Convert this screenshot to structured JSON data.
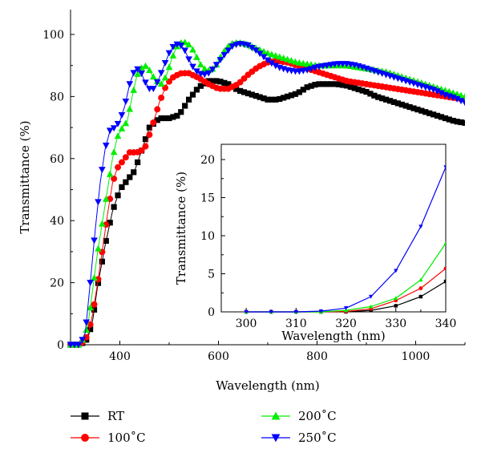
{
  "colors": {
    "RT": "#000000",
    "100C": "#ff0000",
    "200C": "#00ee00",
    "250C": "#0000ff"
  },
  "chart_data": [
    {
      "type": "line",
      "xlabel": "Wavelength (nm)",
      "ylabel": "Transmittance (%)",
      "xlim": [
        300,
        1100
      ],
      "ylim": [
        0,
        108
      ],
      "xticks": [
        400,
        600,
        800,
        1000
      ],
      "yticks": [
        0,
        20,
        40,
        60,
        80,
        100
      ],
      "grid": false,
      "legend_placement": "bottom",
      "series": [
        {
          "name": "RT",
          "color": "#000000",
          "marker": "square",
          "x": [
            300,
            320,
            335,
            345,
            355,
            370,
            385,
            400,
            415,
            430,
            445,
            460,
            480,
            500,
            520,
            540,
            560,
            580,
            600,
            620,
            640,
            660,
            680,
            700,
            720,
            740,
            760,
            780,
            800,
            820,
            840,
            860,
            880,
            900,
            920,
            940,
            960,
            980,
            1000,
            1020,
            1040,
            1060,
            1080,
            1100
          ],
          "y": [
            0,
            0,
            2,
            8,
            19,
            32,
            43,
            50,
            53,
            56,
            63,
            70,
            73,
            73,
            74,
            79,
            83,
            85,
            85,
            84,
            82,
            81,
            80,
            79,
            79,
            80,
            81,
            83,
            84,
            84,
            84,
            83.5,
            82.5,
            81.5,
            80,
            79,
            78,
            77,
            76,
            75,
            74,
            73,
            72,
            71.5
          ]
        },
        {
          "name": "100˚C",
          "color": "#ff0000",
          "marker": "circle",
          "x": [
            300,
            320,
            335,
            345,
            355,
            365,
            375,
            385,
            395,
            405,
            420,
            435,
            450,
            465,
            480,
            495,
            510,
            525,
            540,
            560,
            580,
            600,
            620,
            640,
            660,
            680,
            700,
            720,
            740,
            760,
            780,
            800,
            820,
            840,
            860,
            880,
            900,
            920,
            940,
            960,
            980,
            1000,
            1020,
            1040,
            1060,
            1080,
            1100
          ],
          "y": [
            0,
            0,
            3,
            10,
            20,
            31,
            42,
            52,
            57,
            59,
            62,
            62,
            63,
            70,
            78,
            84,
            86.5,
            87.5,
            87.5,
            86,
            84,
            82.5,
            82.5,
            84,
            87,
            89.5,
            91,
            91.5,
            91,
            90,
            89,
            88,
            87,
            86,
            85,
            84.5,
            84,
            83.5,
            83,
            82.5,
            82,
            81.5,
            81,
            80.5,
            80,
            79.5,
            79
          ]
        },
        {
          "name": "200˚C",
          "color": "#00ee00",
          "marker": "triangle-up",
          "x": [
            300,
            320,
            335,
            345,
            355,
            365,
            375,
            385,
            395,
            405,
            415,
            425,
            435,
            445,
            455,
            465,
            475,
            485,
            495,
            505,
            515,
            525,
            535,
            545,
            555,
            565,
            575,
            585,
            595,
            605,
            615,
            625,
            640,
            655,
            670,
            685,
            700,
            720,
            740,
            760,
            780,
            800,
            820,
            840,
            860,
            880,
            900,
            920,
            940,
            960,
            980,
            1000,
            1020,
            1040,
            1060,
            1080,
            1100
          ],
          "y": [
            0,
            0,
            6,
            18,
            30,
            40,
            50,
            60,
            67,
            70,
            72,
            80,
            87,
            89.5,
            90,
            87,
            85,
            84,
            87,
            92,
            96,
            97.5,
            97.5,
            96,
            93,
            90,
            88.5,
            88.5,
            90,
            93,
            95.5,
            97,
            97.5,
            97,
            96,
            95,
            94,
            93,
            92,
            91,
            90.5,
            90,
            90,
            90,
            90,
            89.5,
            89,
            88.5,
            88,
            87,
            86,
            85,
            84,
            83,
            82,
            81,
            80
          ]
        },
        {
          "name": "250˚C",
          "color": "#0000ff",
          "marker": "triangle-down",
          "x": [
            300,
            320,
            330,
            340,
            350,
            360,
            370,
            380,
            390,
            400,
            410,
            420,
            430,
            440,
            450,
            460,
            470,
            480,
            490,
            500,
            510,
            520,
            530,
            540,
            550,
            560,
            570,
            580,
            590,
            600,
            615,
            630,
            645,
            660,
            675,
            690,
            705,
            720,
            740,
            760,
            780,
            800,
            820,
            840,
            860,
            880,
            900,
            920,
            940,
            960,
            980,
            1000,
            1020,
            1040,
            1060,
            1080,
            1100
          ],
          "y": [
            0,
            0,
            4,
            20,
            37,
            52,
            63,
            69,
            70,
            72,
            77,
            84,
            88.5,
            89,
            85,
            82.5,
            82.5,
            86,
            90,
            94,
            96.5,
            97,
            95.5,
            92,
            89,
            87.5,
            87,
            87.5,
            89,
            91,
            94,
            96.5,
            97,
            96.5,
            95,
            93,
            91,
            89.5,
            88.5,
            88,
            88.5,
            89.5,
            90,
            90.5,
            90.5,
            90,
            89,
            88,
            87,
            86,
            85,
            84,
            83,
            82,
            80.5,
            79.5,
            78
          ]
        }
      ]
    },
    {
      "type": "line",
      "placement": "inset",
      "xlabel": "Wavelength (nm)",
      "ylabel": "Transmittance (%)",
      "xlim": [
        295,
        340
      ],
      "ylim": [
        0,
        22
      ],
      "xticks": [
        300,
        310,
        320,
        330,
        340
      ],
      "yticks": [
        0,
        5,
        10,
        15,
        20
      ],
      "grid": false,
      "series": [
        {
          "name": "RT",
          "color": "#000000",
          "marker": "square",
          "x": [
            300,
            305,
            310,
            315,
            320,
            325,
            330,
            335,
            340
          ],
          "y": [
            0,
            0,
            0,
            0,
            0,
            0.2,
            0.8,
            2.0,
            4.0
          ]
        },
        {
          "name": "100˚C",
          "color": "#ff0000",
          "marker": "circle",
          "x": [
            300,
            305,
            310,
            315,
            320,
            325,
            330,
            335,
            340
          ],
          "y": [
            0,
            0,
            0,
            0,
            0.05,
            0.4,
            1.5,
            3.1,
            5.7
          ]
        },
        {
          "name": "200˚C",
          "color": "#00ee00",
          "marker": "triangle-up",
          "x": [
            300,
            305,
            310,
            315,
            320,
            325,
            330,
            335,
            340
          ],
          "y": [
            0,
            0,
            0,
            0,
            0.2,
            0.7,
            1.8,
            4.2,
            9.0
          ]
        },
        {
          "name": "250˚C",
          "color": "#0000ff",
          "marker": "triangle-down",
          "x": [
            300,
            305,
            310,
            315,
            320,
            325,
            330,
            335,
            340
          ],
          "y": [
            0,
            0,
            0,
            0.1,
            0.5,
            2.0,
            5.4,
            11.2,
            19.0
          ]
        }
      ]
    }
  ]
}
